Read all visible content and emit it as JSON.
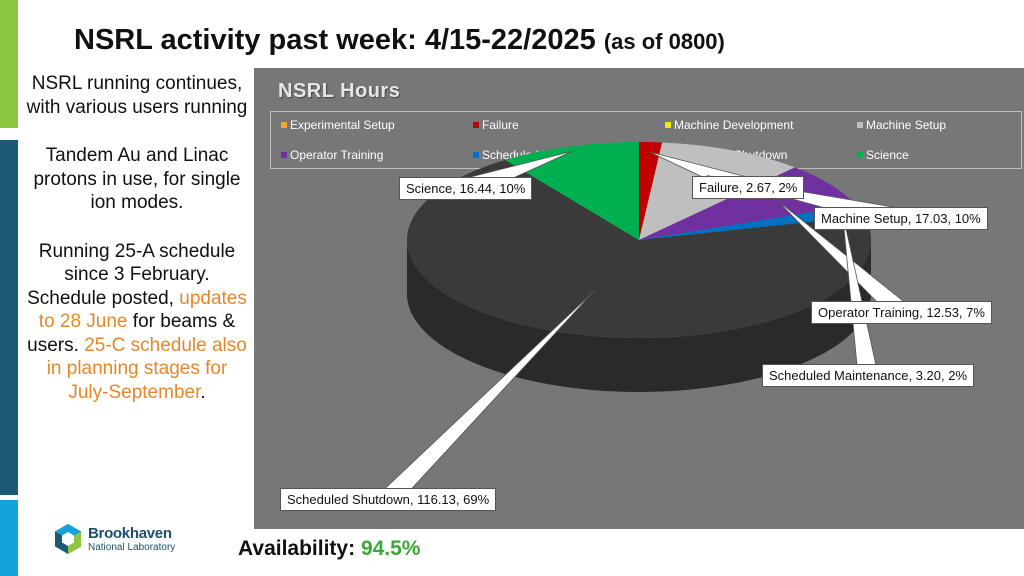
{
  "slide": {
    "title_main": "NSRL activity past week: 4/15-22/2025",
    "title_sub": "(as of 0800)"
  },
  "left_text": {
    "p1": "NSRL running continues, with various users running",
    "p2": "Tandem Au and Linac protons in use, for single ion modes.",
    "p3_a": "Running 25-A schedule since 3 February. Schedule posted, ",
    "p3_b": "updates to 28 June",
    "p3_c": " for beams & users. ",
    "p3_d": "25-C schedule also in planning stages for July-September",
    "p3_e": "."
  },
  "logo": {
    "name": "Brookhaven",
    "lab": "National Laboratory"
  },
  "availability": {
    "label": "Availability: ",
    "value": "94.5%"
  },
  "colors": {
    "orange_text": "#e8872a",
    "availability_green": "#3aa935",
    "panel_bg": "#777777"
  },
  "chart_data": {
    "type": "pie",
    "title": "NSRL Hours",
    "legend_placement": "top",
    "legend": [
      {
        "name": "Experimental Setup",
        "color": "#f5a623"
      },
      {
        "name": "Failure",
        "color": "#c00000"
      },
      {
        "name": "Machine Development",
        "color": "#f2e600"
      },
      {
        "name": "Machine Setup",
        "color": "#bfbfbf"
      },
      {
        "name": "Operator Training",
        "color": "#7030a0"
      },
      {
        "name": "Scheduled Maintenance",
        "color": "#0070c0"
      },
      {
        "name": "Scheduled Shutdown",
        "color": "#3a3a3a"
      },
      {
        "name": "Science",
        "color": "#00b050"
      }
    ],
    "slices": [
      {
        "name": "Failure",
        "value": 2.67,
        "percent": 2,
        "color": "#c00000",
        "label": "Failure, 2.67, 2%"
      },
      {
        "name": "Machine Setup",
        "value": 17.03,
        "percent": 10,
        "color": "#bfbfbf",
        "label": "Machine Setup, 17.03, 10%"
      },
      {
        "name": "Operator Training",
        "value": 12.53,
        "percent": 7,
        "color": "#7030a0",
        "label": "Operator Training, 12.53, 7%"
      },
      {
        "name": "Scheduled Maintenance",
        "value": 3.2,
        "percent": 2,
        "color": "#0070c0",
        "label": "Scheduled Maintenance, 3.20, 2%"
      },
      {
        "name": "Scheduled Shutdown",
        "value": 116.13,
        "percent": 69,
        "color": "#3a3a3a",
        "label": "Scheduled Shutdown, 116.13, 69%"
      },
      {
        "name": "Science",
        "value": 16.44,
        "percent": 10,
        "color": "#00b050",
        "label": "Science, 16.44, 10%"
      }
    ]
  }
}
